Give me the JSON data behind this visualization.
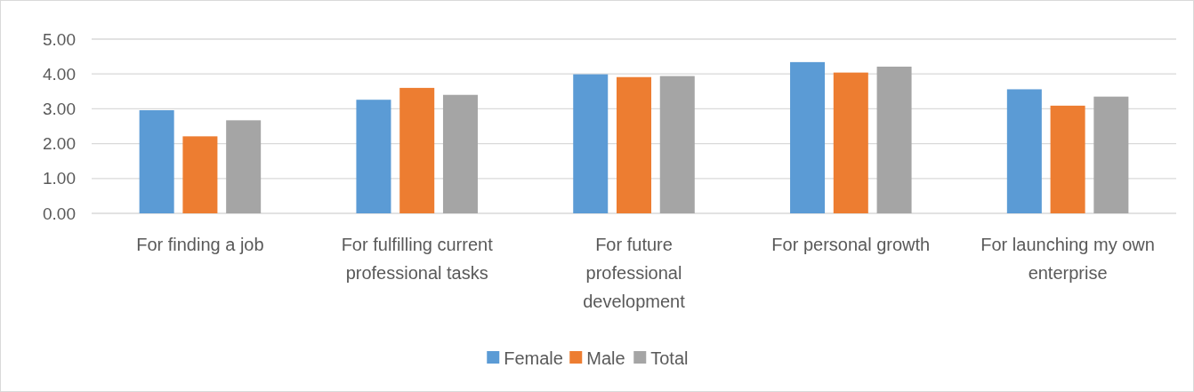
{
  "chart_data": {
    "type": "bar",
    "categories": [
      "For finding a job",
      "For fulfilling current professional tasks",
      "For future professional development",
      "For personal growth",
      "For launching my own enterprise"
    ],
    "series": [
      {
        "name": "Female",
        "color": "#5b9bd5",
        "values": [
          2.96,
          3.26,
          3.99,
          4.34,
          3.56
        ]
      },
      {
        "name": "Male",
        "color": "#ed7d31",
        "values": [
          2.21,
          3.6,
          3.91,
          4.04,
          3.09
        ]
      },
      {
        "name": "Total",
        "color": "#a5a5a5",
        "values": [
          2.67,
          3.4,
          3.94,
          4.21,
          3.35
        ]
      }
    ],
    "ylim": [
      0,
      5
    ],
    "yticks": [
      {
        "value": 0,
        "label": "0.00"
      },
      {
        "value": 1,
        "label": "1.00"
      },
      {
        "value": 2,
        "label": "2.00"
      },
      {
        "value": 3,
        "label": "3.00"
      },
      {
        "value": 4,
        "label": "4.00"
      },
      {
        "value": 5,
        "label": "5.00"
      }
    ],
    "grid": "y",
    "legend": "bottom"
  }
}
